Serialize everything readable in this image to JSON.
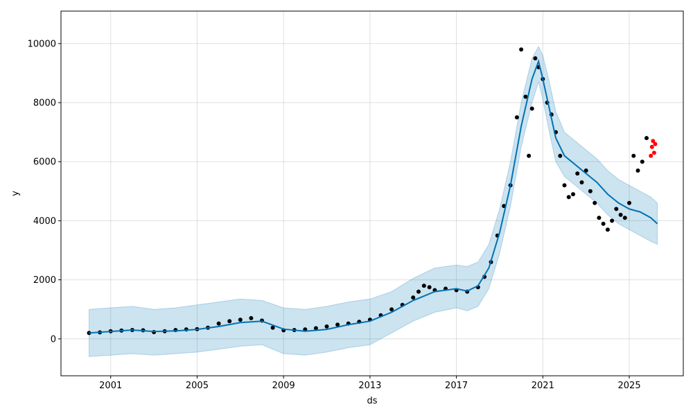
{
  "chart_data": {
    "type": "line",
    "title": "",
    "xlabel": "ds",
    "ylabel": "y",
    "xlim": [
      1998.7,
      2027.5
    ],
    "ylim": [
      -1250,
      11100
    ],
    "x_ticks": [
      2001,
      2005,
      2009,
      2013,
      2017,
      2021,
      2025
    ],
    "y_ticks": [
      0,
      2000,
      4000,
      6000,
      8000,
      10000
    ],
    "grid": true,
    "colors": {
      "observed": "#000000",
      "forecast_line": "#0072b2",
      "uncertainty_band": "#0072b2",
      "recent_points": "#ff0000"
    },
    "series": [
      {
        "name": "observed",
        "style": "points",
        "x": [
          2000.0,
          2000.5,
          2001.0,
          2001.5,
          2002.0,
          2002.5,
          2003.0,
          2003.5,
          2004.0,
          2004.5,
          2005.0,
          2005.5,
          2006.0,
          2006.5,
          2007.0,
          2007.5,
          2008.0,
          2008.5,
          2009.0,
          2009.5,
          2010.0,
          2010.5,
          2011.0,
          2011.5,
          2012.0,
          2012.5,
          2013.0,
          2013.5,
          2014.0,
          2014.5,
          2015.0,
          2015.25,
          2015.5,
          2015.75,
          2016.0,
          2016.5,
          2017.0,
          2017.5,
          2018.0,
          2018.3,
          2018.6,
          2018.9,
          2019.2,
          2019.5,
          2019.8,
          2020.0,
          2020.2,
          2020.35,
          2020.5,
          2020.65,
          2020.8,
          2021.0,
          2021.2,
          2021.4,
          2021.6,
          2021.8,
          2022.0,
          2022.2,
          2022.4,
          2022.6,
          2022.8,
          2023.0,
          2023.2,
          2023.4,
          2023.6,
          2023.8,
          2024.0,
          2024.2,
          2024.4,
          2024.6,
          2024.8,
          2025.0,
          2025.2,
          2025.4,
          2025.6,
          2025.8
        ],
        "y": [
          200,
          220,
          260,
          280,
          300,
          290,
          230,
          260,
          300,
          320,
          330,
          380,
          520,
          600,
          650,
          700,
          620,
          380,
          290,
          300,
          320,
          360,
          420,
          480,
          520,
          580,
          650,
          800,
          1000,
          1150,
          1400,
          1600,
          1800,
          1750,
          1650,
          1700,
          1650,
          1600,
          1750,
          2100,
          2600,
          3500,
          4500,
          5200,
          7500,
          9800,
          8200,
          6200,
          7800,
          9500,
          9200,
          8800,
          8000,
          7600,
          7000,
          6200,
          5200,
          4800,
          4900,
          5600,
          5300,
          5700,
          5000,
          4600,
          4100,
          3900,
          3700,
          4000,
          4400,
          4200,
          4100,
          4600,
          6200,
          5700,
          6000,
          6800
        ]
      },
      {
        "name": "recent",
        "style": "points",
        "x": [
          2026.0,
          2026.05,
          2026.1,
          2026.15,
          2026.2
        ],
        "y": [
          6200,
          6500,
          6700,
          6300,
          6600
        ]
      },
      {
        "name": "forecast",
        "style": "line",
        "x": [
          2000.0,
          2001.0,
          2002.0,
          2003.0,
          2004.0,
          2005.0,
          2006.0,
          2007.0,
          2008.0,
          2009.0,
          2010.0,
          2011.0,
          2012.0,
          2013.0,
          2014.0,
          2015.0,
          2016.0,
          2017.0,
          2017.5,
          2018.0,
          2018.5,
          2019.0,
          2019.5,
          2020.0,
          2020.5,
          2020.8,
          2021.0,
          2021.3,
          2021.6,
          2022.0,
          2022.5,
          2023.0,
          2023.5,
          2024.0,
          2024.5,
          2025.0,
          2025.5,
          2026.0,
          2026.3
        ],
        "y": [
          200,
          250,
          300,
          250,
          270,
          320,
          420,
          550,
          600,
          330,
          260,
          320,
          480,
          600,
          900,
          1300,
          1600,
          1700,
          1620,
          1800,
          2400,
          3600,
          5200,
          7200,
          8800,
          9400,
          8800,
          7800,
          6800,
          6200,
          5900,
          5600,
          5300,
          4900,
          4600,
          4400,
          4300,
          4100,
          3900
        ]
      },
      {
        "name": "uncertainty_upper",
        "style": "band",
        "x": [
          2000.0,
          2001.0,
          2002.0,
          2003.0,
          2004.0,
          2005.0,
          2006.0,
          2007.0,
          2008.0,
          2009.0,
          2010.0,
          2011.0,
          2012.0,
          2013.0,
          2014.0,
          2015.0,
          2016.0,
          2017.0,
          2017.5,
          2018.0,
          2018.5,
          2019.0,
          2019.5,
          2020.0,
          2020.5,
          2020.8,
          2021.0,
          2021.3,
          2021.6,
          2022.0,
          2022.5,
          2023.0,
          2023.5,
          2024.0,
          2024.5,
          2025.0,
          2025.5,
          2026.0,
          2026.3
        ],
        "y": [
          1000,
          1050,
          1100,
          1000,
          1050,
          1150,
          1250,
          1350,
          1300,
          1050,
          1000,
          1100,
          1250,
          1350,
          1600,
          2050,
          2400,
          2500,
          2450,
          2600,
          3200,
          4400,
          6000,
          8000,
          9500,
          9900,
          9600,
          8700,
          7700,
          7000,
          6700,
          6400,
          6100,
          5700,
          5400,
          5200,
          5000,
          4800,
          4600
        ]
      },
      {
        "name": "uncertainty_lower",
        "style": "band",
        "x": [
          2000.0,
          2001.0,
          2002.0,
          2003.0,
          2004.0,
          2005.0,
          2006.0,
          2007.0,
          2008.0,
          2009.0,
          2010.0,
          2011.0,
          2012.0,
          2013.0,
          2014.0,
          2015.0,
          2016.0,
          2017.0,
          2017.5,
          2018.0,
          2018.5,
          2019.0,
          2019.5,
          2020.0,
          2020.5,
          2020.8,
          2021.0,
          2021.3,
          2021.6,
          2022.0,
          2022.5,
          2023.0,
          2023.5,
          2024.0,
          2024.5,
          2025.0,
          2025.5,
          2026.0,
          2026.3
        ],
        "y": [
          -600,
          -550,
          -500,
          -550,
          -500,
          -450,
          -350,
          -250,
          -200,
          -500,
          -550,
          -450,
          -300,
          -200,
          200,
          600,
          900,
          1050,
          950,
          1100,
          1700,
          2900,
          4500,
          6500,
          8000,
          8700,
          8100,
          7000,
          6000,
          5500,
          5200,
          4900,
          4600,
          4200,
          3900,
          3700,
          3500,
          3300,
          3200
        ]
      }
    ]
  }
}
